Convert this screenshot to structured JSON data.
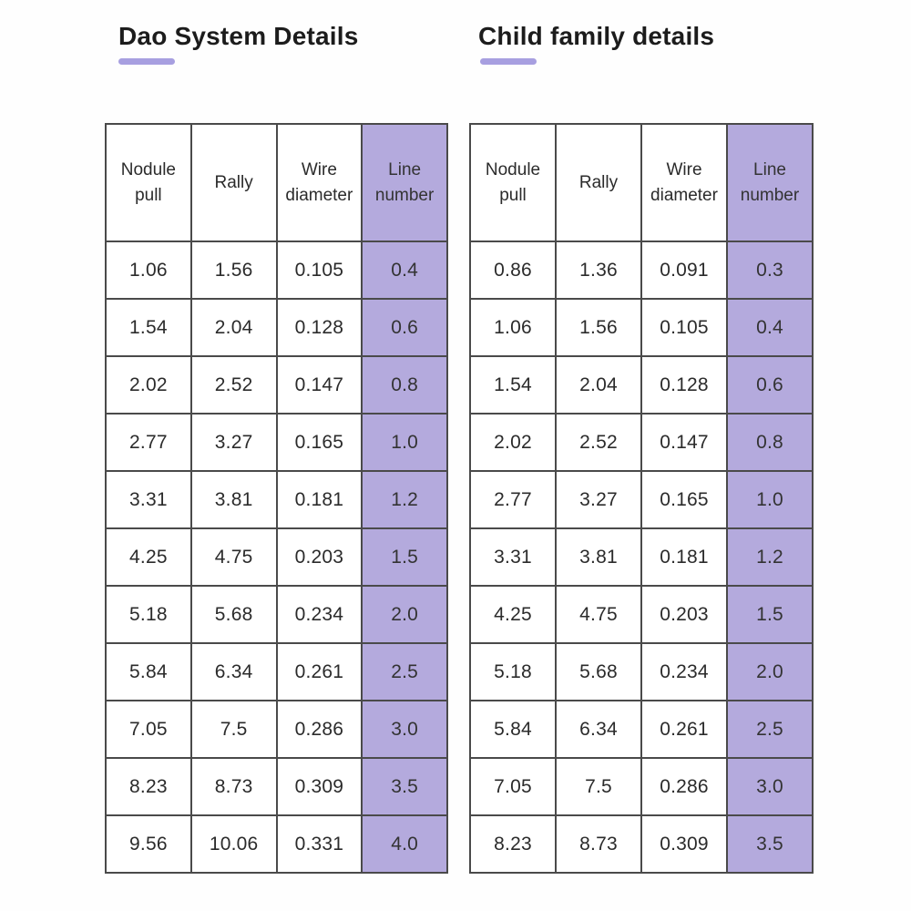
{
  "colors": {
    "highlight_column_fill": "#b4aadd",
    "title_underline": "#a79fe0",
    "table_border": "#4a4a4a",
    "text": "#2b2b2b",
    "background": "#fefefe"
  },
  "chart_data": [
    {
      "type": "table",
      "title": "Dao System Details",
      "columns": [
        "Nodule pull",
        "Rally",
        "Wire diameter",
        "Line number"
      ],
      "highlighted_column": "Line number",
      "rows": [
        [
          "1.06",
          "1.56",
          "0.105",
          "0.4"
        ],
        [
          "1.54",
          "2.04",
          "0.128",
          "0.6"
        ],
        [
          "2.02",
          "2.52",
          "0.147",
          "0.8"
        ],
        [
          "2.77",
          "3.27",
          "0.165",
          "1.0"
        ],
        [
          "3.31",
          "3.81",
          "0.181",
          "1.2"
        ],
        [
          "4.25",
          "4.75",
          "0.203",
          "1.5"
        ],
        [
          "5.18",
          "5.68",
          "0.234",
          "2.0"
        ],
        [
          "5.84",
          "6.34",
          "0.261",
          "2.5"
        ],
        [
          "7.05",
          "7.5",
          "0.286",
          "3.0"
        ],
        [
          "8.23",
          "8.73",
          "0.309",
          "3.5"
        ],
        [
          "9.56",
          "10.06",
          "0.331",
          "4.0"
        ]
      ]
    },
    {
      "type": "table",
      "title": "Child family details",
      "columns": [
        "Nodule pull",
        "Rally",
        "Wire diameter",
        "Line number"
      ],
      "highlighted_column": "Line number",
      "rows": [
        [
          "0.86",
          "1.36",
          "0.091",
          "0.3"
        ],
        [
          "1.06",
          "1.56",
          "0.105",
          "0.4"
        ],
        [
          "1.54",
          "2.04",
          "0.128",
          "0.6"
        ],
        [
          "2.02",
          "2.52",
          "0.147",
          "0.8"
        ],
        [
          "2.77",
          "3.27",
          "0.165",
          "1.0"
        ],
        [
          "3.31",
          "3.81",
          "0.181",
          "1.2"
        ],
        [
          "4.25",
          "4.75",
          "0.203",
          "1.5"
        ],
        [
          "5.18",
          "5.68",
          "0.234",
          "2.0"
        ],
        [
          "5.84",
          "6.34",
          "0.261",
          "2.5"
        ],
        [
          "7.05",
          "7.5",
          "0.286",
          "3.0"
        ],
        [
          "8.23",
          "8.73",
          "0.309",
          "3.5"
        ]
      ]
    }
  ]
}
